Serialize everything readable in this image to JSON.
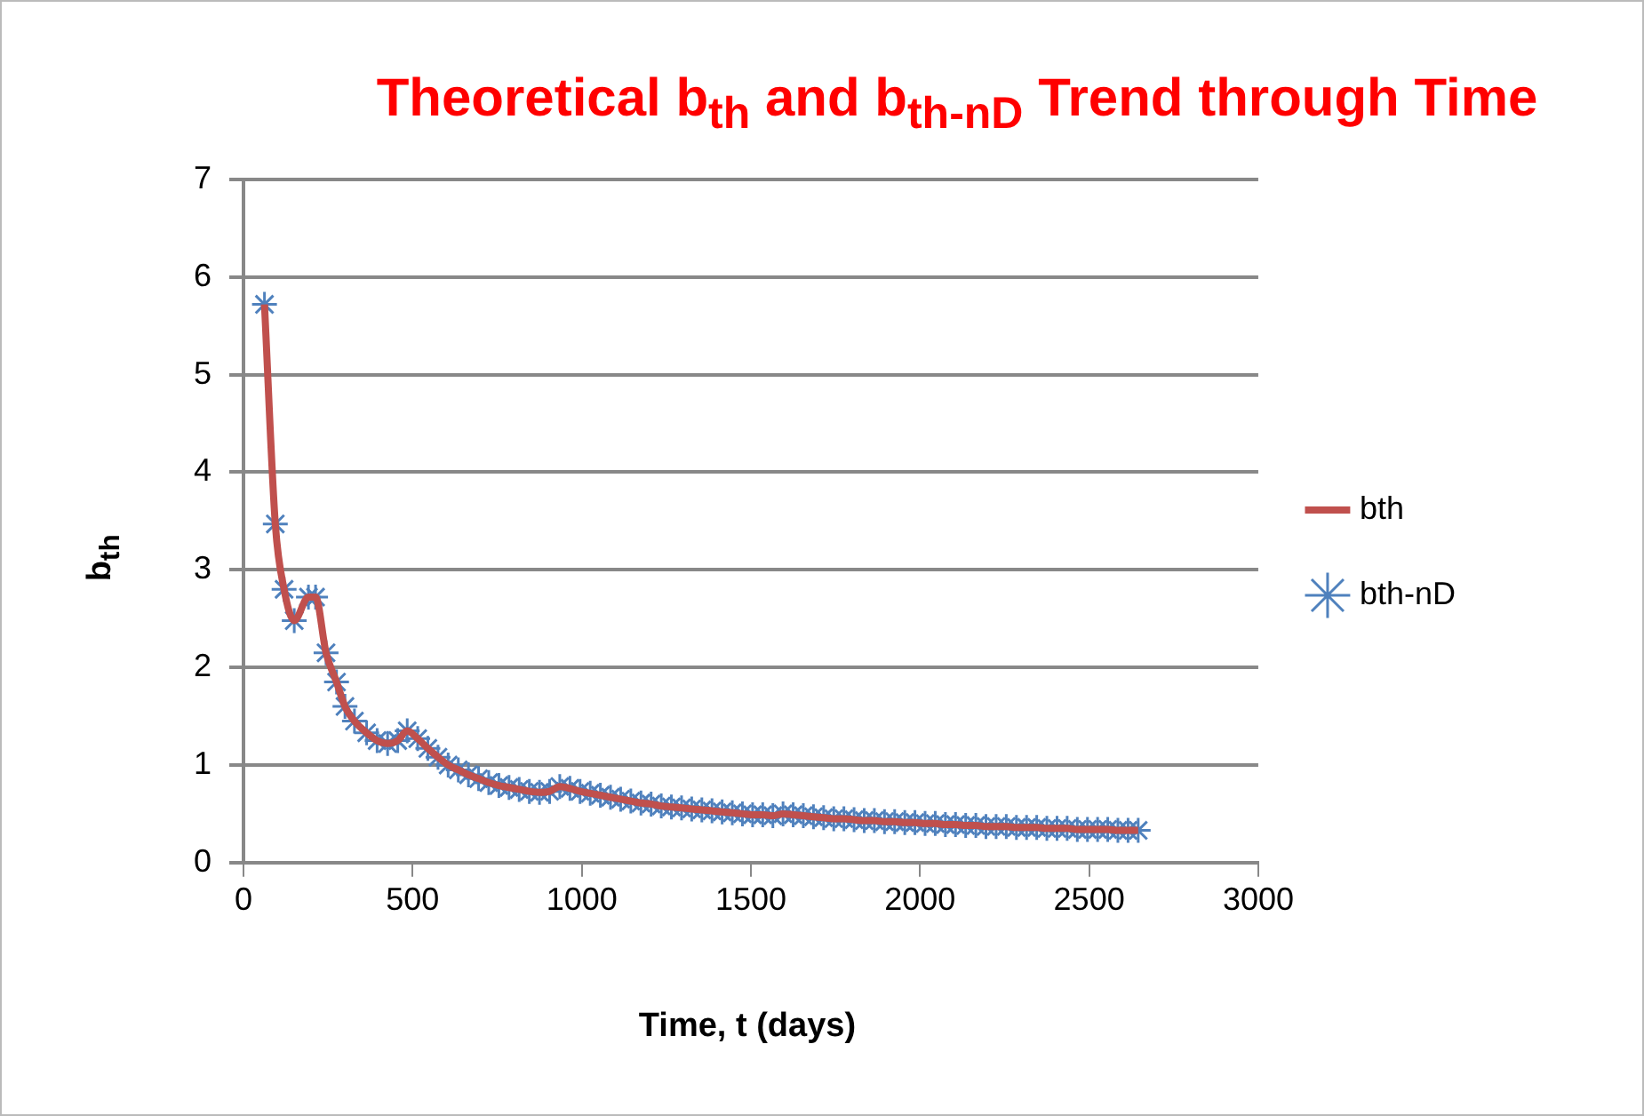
{
  "chart_data": {
    "type": "line",
    "title": "Theoretical b$_{th}$ and b$_{th-nD}$  Trend through Time",
    "xlabel": "Time, t (days)",
    "ylabel": "b$_{th}$",
    "x": [
      62,
      94,
      120,
      150,
      192,
      213,
      244,
      275,
      300,
      328,
      364,
      395,
      426,
      456,
      484,
      515,
      545,
      575,
      605,
      635,
      665,
      695,
      725,
      755,
      785,
      815,
      845,
      875,
      905,
      935,
      965,
      995,
      1025,
      1055,
      1085,
      1115,
      1145,
      1175,
      1205,
      1235,
      1265,
      1295,
      1325,
      1355,
      1385,
      1415,
      1445,
      1475,
      1505,
      1535,
      1565,
      1595,
      1625,
      1655,
      1685,
      1715,
      1745,
      1775,
      1805,
      1835,
      1865,
      1895,
      1925,
      1955,
      1985,
      2015,
      2045,
      2075,
      2105,
      2135,
      2165,
      2195,
      2225,
      2255,
      2285,
      2315,
      2345,
      2375,
      2405,
      2435,
      2465,
      2495,
      2525,
      2555,
      2585,
      2615,
      2645
    ],
    "series": [
      {
        "name": "bth",
        "type": "line",
        "color": "#c0504d",
        "marker": "none",
        "values": [
          5.72,
          3.47,
          2.8,
          2.48,
          2.72,
          2.72,
          2.15,
          1.85,
          1.6,
          1.45,
          1.33,
          1.25,
          1.22,
          1.25,
          1.35,
          1.27,
          1.17,
          1.08,
          1.0,
          0.95,
          0.9,
          0.86,
          0.82,
          0.79,
          0.77,
          0.75,
          0.73,
          0.72,
          0.73,
          0.78,
          0.76,
          0.73,
          0.71,
          0.69,
          0.67,
          0.65,
          0.63,
          0.61,
          0.6,
          0.58,
          0.57,
          0.56,
          0.55,
          0.54,
          0.53,
          0.52,
          0.51,
          0.5,
          0.49,
          0.49,
          0.48,
          0.5,
          0.49,
          0.48,
          0.47,
          0.46,
          0.45,
          0.45,
          0.44,
          0.43,
          0.43,
          0.42,
          0.42,
          0.41,
          0.41,
          0.4,
          0.4,
          0.39,
          0.39,
          0.38,
          0.38,
          0.37,
          0.37,
          0.37,
          0.36,
          0.36,
          0.36,
          0.35,
          0.35,
          0.35,
          0.34,
          0.34,
          0.34,
          0.34,
          0.33,
          0.33,
          0.33
        ]
      },
      {
        "name": "bth-nD",
        "type": "scatter",
        "color": "#4f81bd",
        "marker": "cross",
        "values": [
          5.72,
          3.47,
          2.8,
          2.48,
          2.72,
          2.72,
          2.15,
          1.85,
          1.6,
          1.45,
          1.33,
          1.25,
          1.22,
          1.25,
          1.35,
          1.27,
          1.17,
          1.08,
          1.0,
          0.95,
          0.9,
          0.86,
          0.82,
          0.79,
          0.77,
          0.75,
          0.73,
          0.72,
          0.73,
          0.78,
          0.76,
          0.73,
          0.71,
          0.69,
          0.67,
          0.65,
          0.63,
          0.61,
          0.6,
          0.58,
          0.57,
          0.56,
          0.55,
          0.54,
          0.53,
          0.52,
          0.51,
          0.5,
          0.49,
          0.49,
          0.48,
          0.5,
          0.49,
          0.48,
          0.47,
          0.46,
          0.45,
          0.45,
          0.44,
          0.43,
          0.43,
          0.42,
          0.42,
          0.41,
          0.41,
          0.4,
          0.4,
          0.39,
          0.39,
          0.38,
          0.38,
          0.37,
          0.37,
          0.37,
          0.36,
          0.36,
          0.36,
          0.35,
          0.35,
          0.35,
          0.34,
          0.34,
          0.34,
          0.34,
          0.33,
          0.33,
          0.33
        ]
      }
    ],
    "xlim": [
      0,
      3000
    ],
    "xticks": [
      0,
      500,
      1000,
      1500,
      2000,
      2500,
      3000
    ],
    "ylim": [
      0,
      7
    ],
    "yticks": [
      0,
      1,
      2,
      3,
      4,
      5,
      6,
      7
    ],
    "grid": "y",
    "legend": "right"
  }
}
